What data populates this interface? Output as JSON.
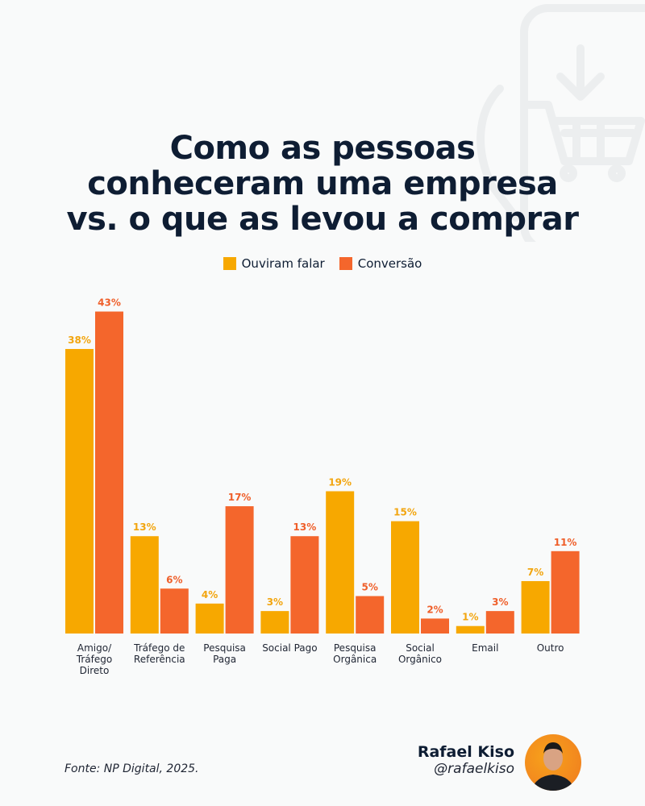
{
  "title_lines": [
    "Como as pessoas",
    "conheceram uma empresa",
    "vs. o que as levou a comprar"
  ],
  "legend": [
    {
      "label": "Ouviram falar",
      "color": "#f7a800"
    },
    {
      "label": "Conversão",
      "color": "#f4662c"
    }
  ],
  "chart_data": {
    "type": "bar",
    "title": "Como as pessoas conheceram uma empresa vs. o que as levou a comprar",
    "categories": [
      "Amigo/ Tráfego Direto",
      "Tráfego de Referência",
      "Pesquisa Paga",
      "Social Pago",
      "Pesquisa Orgânica",
      "Social Orgânico",
      "Email",
      "Outro"
    ],
    "category_lines": [
      [
        "Amigo/",
        "Tráfego",
        "Direto"
      ],
      [
        "Tráfego de",
        "Referência"
      ],
      [
        "Pesquisa",
        "Paga"
      ],
      [
        "Social Pago"
      ],
      [
        "Pesquisa",
        "Orgânica"
      ],
      [
        "Social",
        "Orgânico"
      ],
      [
        "Email"
      ],
      [
        "Outro"
      ]
    ],
    "series": [
      {
        "name": "Ouviram falar",
        "values": [
          38,
          13,
          4,
          3,
          19,
          15,
          1,
          7
        ],
        "color": "#f7a800",
        "label_color": "#f2a50f"
      },
      {
        "name": "Conversão",
        "values": [
          43,
          6,
          17,
          13,
          5,
          2,
          3,
          11
        ],
        "color": "#f4662c",
        "label_color": "#ef5f2a"
      }
    ],
    "value_suffix": "%",
    "ylim": [
      0,
      43
    ],
    "grid": false,
    "legend_position": "top-center"
  },
  "footer": {
    "source": "Fonte: NP Digital, 2025.",
    "author_name": "Rafael Kiso",
    "author_handle": "@rafaelkiso"
  },
  "background_icon": "phone-shopping-cart-download-icon"
}
